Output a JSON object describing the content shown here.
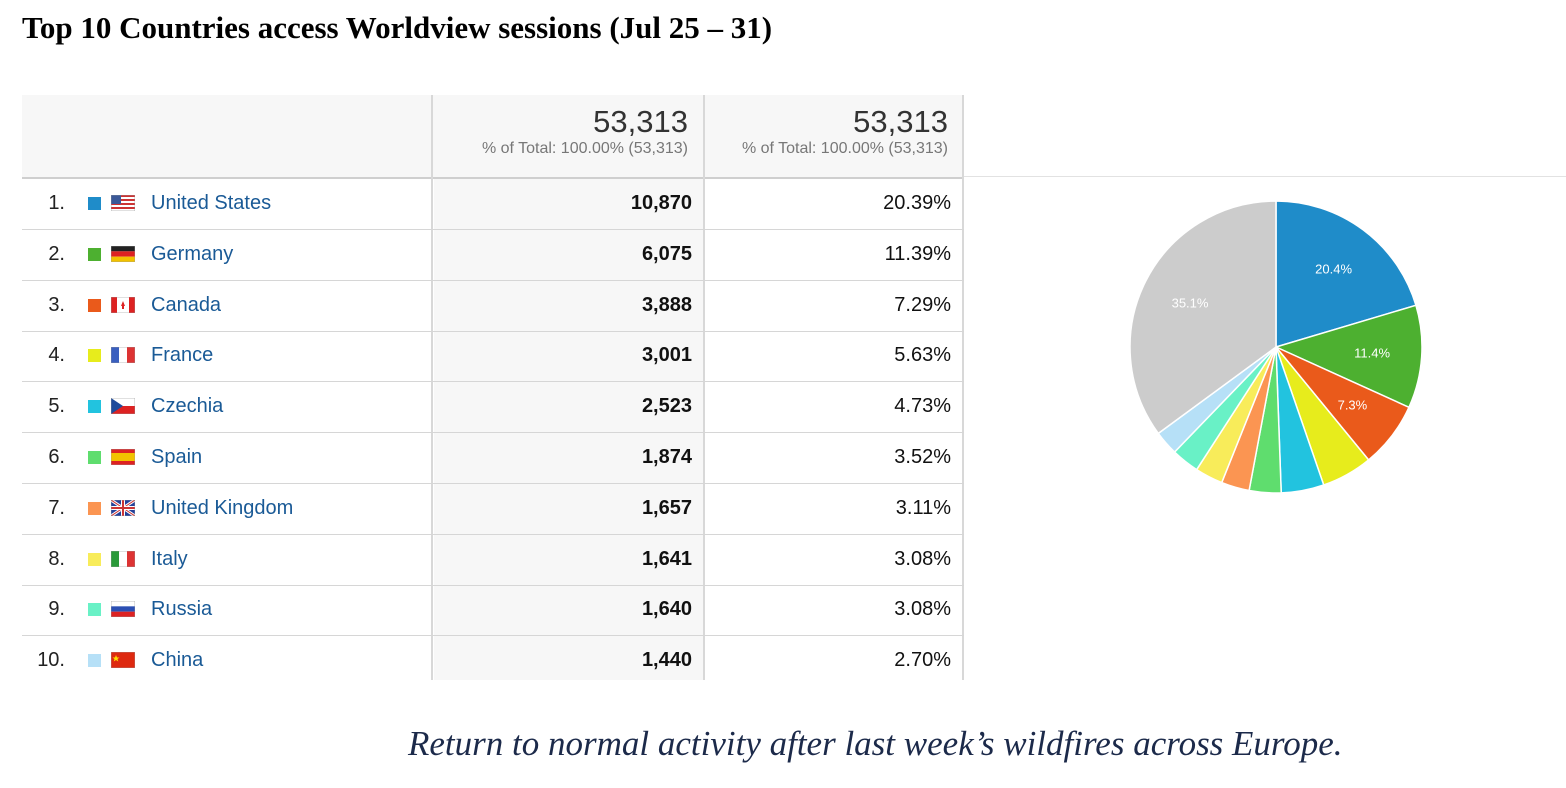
{
  "page_title": "Top 10 Countries access Worldview sessions (Jul 25 – 31)",
  "header": {
    "col1": {
      "value": "53,313",
      "sub": "% of Total: 100.00% (53,313)"
    },
    "col2": {
      "value": "53,313",
      "sub": "% of Total: 100.00% (53,313)"
    }
  },
  "rows": [
    {
      "rank": "1.",
      "country": "United States",
      "sessions": "10,870",
      "pct": "20.39%",
      "color": "#1f8cc9",
      "flag": "us-flag"
    },
    {
      "rank": "2.",
      "country": "Germany",
      "sessions": "6,075",
      "pct": "11.39%",
      "color": "#4db030",
      "flag": "de-flag"
    },
    {
      "rank": "3.",
      "country": "Canada",
      "sessions": "3,888",
      "pct": "7.29%",
      "color": "#ea5a1b",
      "flag": "ca-flag"
    },
    {
      "rank": "4.",
      "country": "France",
      "sessions": "3,001",
      "pct": "5.63%",
      "color": "#e7ec1c",
      "flag": "fr-flag"
    },
    {
      "rank": "5.",
      "country": "Czechia",
      "sessions": "2,523",
      "pct": "4.73%",
      "color": "#22c3df",
      "flag": "cz-flag"
    },
    {
      "rank": "6.",
      "country": "Spain",
      "sessions": "1,874",
      "pct": "3.52%",
      "color": "#5fdd6e",
      "flag": "es-flag"
    },
    {
      "rank": "7.",
      "country": "United Kingdom",
      "sessions": "1,657",
      "pct": "3.11%",
      "color": "#fb9552",
      "flag": "gb-flag"
    },
    {
      "rank": "8.",
      "country": "Italy",
      "sessions": "1,641",
      "pct": "3.08%",
      "color": "#f8ec5a",
      "flag": "it-flag"
    },
    {
      "rank": "9.",
      "country": "Russia",
      "sessions": "1,640",
      "pct": "3.08%",
      "color": "#69f1c6",
      "flag": "ru-flag"
    },
    {
      "rank": "10.",
      "country": "China",
      "sessions": "1,440",
      "pct": "2.70%",
      "color": "#b6e0f7",
      "flag": "cn-flag"
    }
  ],
  "pie": {
    "slices": [
      {
        "value": 20.39,
        "color": "#1f8cc9",
        "label": "20.4%"
      },
      {
        "value": 11.39,
        "color": "#4db030",
        "label": "11.4%"
      },
      {
        "value": 7.29,
        "color": "#ea5a1b",
        "label": "7.3%"
      },
      {
        "value": 5.63,
        "color": "#e7ec1c",
        "label": ""
      },
      {
        "value": 4.73,
        "color": "#22c3df",
        "label": ""
      },
      {
        "value": 3.52,
        "color": "#5fdd6e",
        "label": ""
      },
      {
        "value": 3.11,
        "color": "#fb9552",
        "label": ""
      },
      {
        "value": 3.08,
        "color": "#f8ec5a",
        "label": ""
      },
      {
        "value": 3.08,
        "color": "#69f1c6",
        "label": ""
      },
      {
        "value": 2.7,
        "color": "#b6e0f7",
        "label": ""
      },
      {
        "value": 35.08,
        "color": "#cccccc",
        "label": "35.1%"
      }
    ]
  },
  "caption": "Return to normal activity after last week’s wildfires across Europe."
}
